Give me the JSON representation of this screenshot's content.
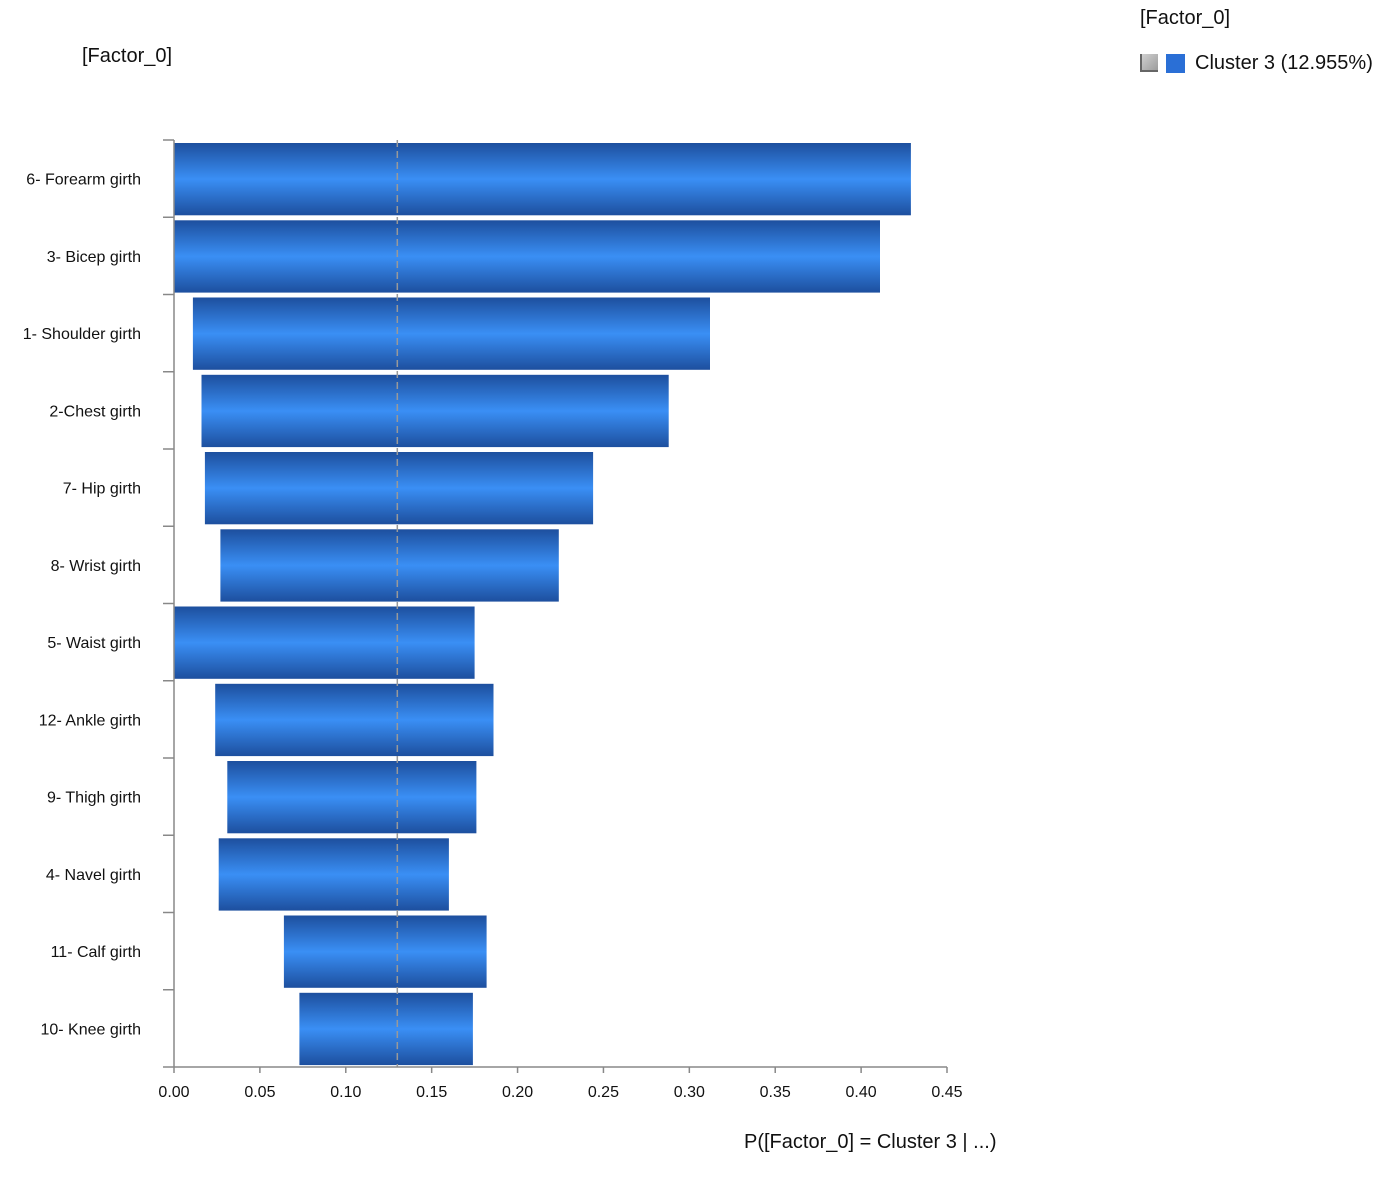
{
  "chart_data": {
    "type": "bar",
    "orientation": "horizontal",
    "bar_style": "floating",
    "title": "[Factor_0]",
    "legend": {
      "title": "[Factor_0]",
      "placement": "top-right",
      "entries": [
        {
          "label": "Cluster 3 (12.955%)",
          "color": "#2a6fd6"
        }
      ]
    },
    "xlabel": "P([Factor_0] = Cluster 3 | ...)",
    "ylabel": "",
    "xlim": [
      0,
      0.45
    ],
    "xticks": [
      "0.00",
      "0.05",
      "0.10",
      "0.15",
      "0.20",
      "0.25",
      "0.30",
      "0.35",
      "0.40",
      "0.45"
    ],
    "reference_line": 0.13,
    "grid": false,
    "categories": [
      "6- Forearm girth",
      "3- Bicep girth",
      "1- Shoulder girth",
      "2-Chest girth",
      "7- Hip girth",
      "8- Wrist girth",
      "5- Waist girth",
      "12- Ankle girth",
      "9- Thigh girth",
      "4- Navel girth",
      "11- Calf girth",
      "10- Knee girth"
    ],
    "ranges": [
      [
        0.0,
        0.429
      ],
      [
        0.0,
        0.411
      ],
      [
        0.011,
        0.312
      ],
      [
        0.016,
        0.288
      ],
      [
        0.018,
        0.244
      ],
      [
        0.027,
        0.224
      ],
      [
        0.0,
        0.175
      ],
      [
        0.024,
        0.186
      ],
      [
        0.031,
        0.176
      ],
      [
        0.026,
        0.16
      ],
      [
        0.064,
        0.182
      ],
      [
        0.073,
        0.174
      ]
    ],
    "colors": {
      "bar_dark": "#1d4f9e",
      "bar_light": "#3a8ff5",
      "axis": "#888888",
      "reference": "#999999"
    }
  }
}
